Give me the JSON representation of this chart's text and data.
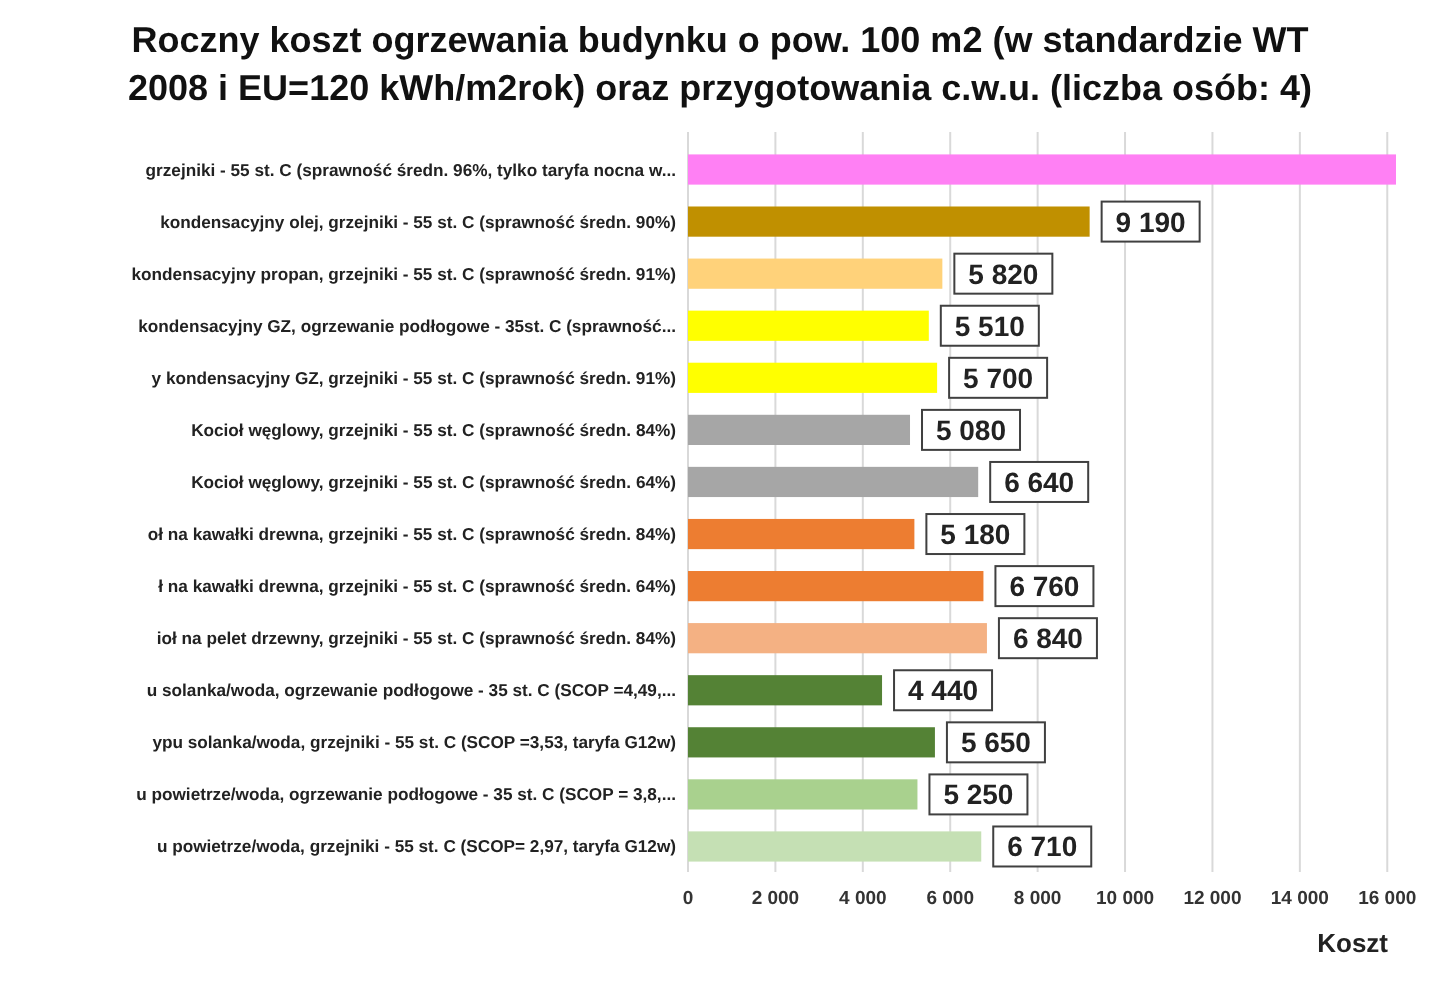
{
  "chart_data": {
    "type": "bar",
    "orientation": "horizontal",
    "title": "Roczny koszt ogrzewania budynku  o pow. 100 m2 (w standardzie WT 2008 i EU=120 kWh/m2rok) oraz przygotowania c.w.u. (liczba osób: 4)",
    "xlabel": "Koszt",
    "categories": [
      "grzejniki - 55 st. C  (sprawność średn. 96%, tylko taryfa nocna w...",
      "kondensacyjny olej,  grzejniki - 55 st. C   (sprawność średn. 90%)",
      "kondensacyjny propan, grzejniki - 55 st. C  (sprawność średn. 91%)",
      "kondensacyjny GZ, ogrzewanie podłogowe - 35st. C   (sprawność...",
      "y kondensacyjny GZ, grzejniki - 55 st. C   (sprawność średn. 91%)",
      "Kocioł węglowy,  grzejniki - 55 st. C   (sprawność średn. 84%)",
      "Kocioł węglowy,  grzejniki - 55 st. C  (sprawność średn. 64%)",
      "oł na kawałki drewna, grzejniki - 55 st. C (sprawność średn. 84%)",
      "ł na kawałki drewna, grzejniki - 55 st. C  (sprawność średn. 64%)",
      "ioł na pelet drzewny, grzejniki - 55 st. C (sprawność średn. 84%)",
      "u solanka/woda, ogrzewanie podłogowe - 35 st. C  (SCOP =4,49,...",
      "ypu solanka/woda, grzejniki - 55 st. C (SCOP =3,53, taryfa G12w)",
      "u powietrze/woda, ogrzewanie podłogowe - 35 st. C (SCOP = 3,8,...",
      "u powietrze/woda, grzejniki - 55 st. C (SCOP= 2,97, taryfa G12w)"
    ],
    "values": [
      16200,
      9190,
      5820,
      5510,
      5700,
      5080,
      6640,
      5180,
      6760,
      6840,
      4440,
      5650,
      5250,
      6710
    ],
    "value_labels": [
      null,
      "9 190",
      "5 820",
      "5 510",
      "5 700",
      "5 080",
      "6 640",
      "5 180",
      "6 760",
      "6 840",
      "4 440",
      "5 650",
      "5 250",
      "6 710"
    ],
    "colors": [
      "#ff80f4",
      "#c09000",
      "#ffd27a",
      "#ffff00",
      "#ffff00",
      "#a6a6a6",
      "#a6a6a6",
      "#ed7d31",
      "#ed7d31",
      "#f4b183",
      "#548235",
      "#548235",
      "#a9d18e",
      "#c5e0b4"
    ],
    "xlim": [
      0,
      16200
    ],
    "xticks": [
      0,
      {
        "value": 2000,
        "label": "2 000"
      },
      {
        "value": 4000,
        "label": "4 000"
      },
      {
        "value": 6000,
        "label": "6 000"
      },
      {
        "value": 8000,
        "label": "8 000"
      },
      {
        "value": 10000,
        "label": "10 000"
      },
      {
        "value": 12000,
        "label": "12 000"
      },
      {
        "value": 14000,
        "label": "14 000"
      },
      {
        "value": 16000,
        "label": "16 000"
      }
    ],
    "grid": "x"
  }
}
